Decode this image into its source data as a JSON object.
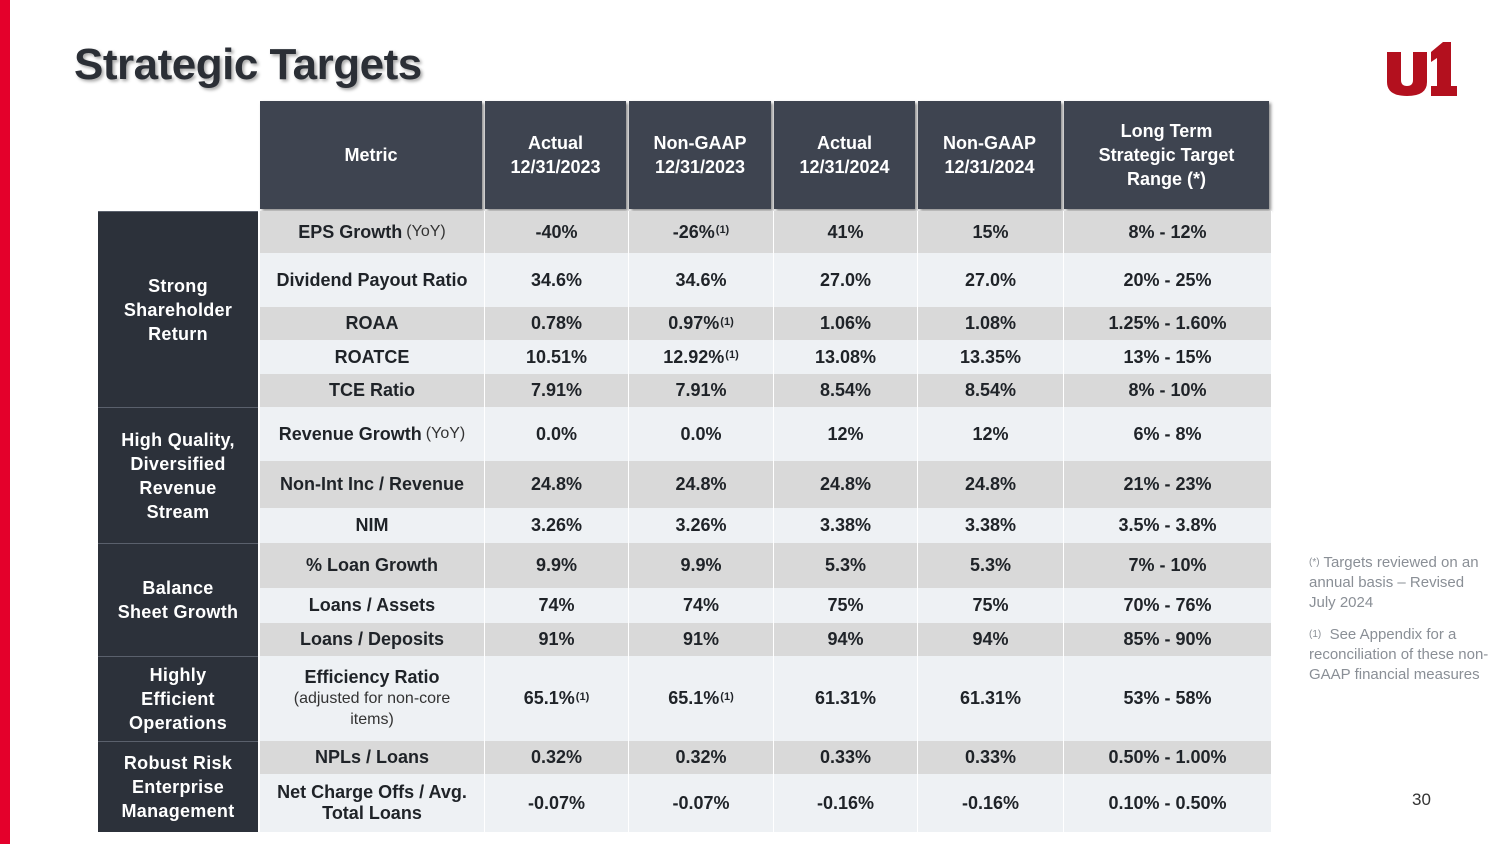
{
  "title": "Strategic Targets",
  "logo_alt": "u1",
  "colors": {
    "accent": "#e4002b",
    "header_bg": "#3e4450",
    "group_bg": "#2c313a",
    "row_dark": "#d9d9d9",
    "row_light": "#eef1f4"
  },
  "headers": [
    "Metric",
    "Actual\n12/31/2023",
    "Non-GAAP\n12/31/2023",
    "Actual\n12/31/2024",
    "Non-GAAP\n12/31/2024",
    "Long Term\nStrategic Target\nRange (*)"
  ],
  "groups": [
    "Strong\nShareholder\nReturn",
    "High Quality,\nDiversified\nRevenue\nStream",
    "Balance\nSheet Growth",
    "Highly\nEfficient\nOperations",
    "Robust Risk\nEnterprise\nManagement"
  ],
  "rows": [
    {
      "metric": "EPS Growth",
      "metric_sub": "(YoY)",
      "values": [
        "-40%",
        "-26%",
        "41%",
        "15%",
        "8% - 12%"
      ],
      "sup": [
        "",
        "(1)",
        "",
        "",
        ""
      ]
    },
    {
      "metric": "Dividend Payout Ratio",
      "values": [
        "34.6%",
        "34.6%",
        "27.0%",
        "27.0%",
        "20% - 25%"
      ],
      "sup": [
        "",
        "",
        "",
        "",
        ""
      ]
    },
    {
      "metric": "ROAA",
      "values": [
        "0.78%",
        "0.97%",
        "1.06%",
        "1.08%",
        "1.25% - 1.60%"
      ],
      "sup": [
        "",
        "(1)",
        "",
        "",
        ""
      ]
    },
    {
      "metric": "ROATCE",
      "values": [
        "10.51%",
        "12.92%",
        "13.08%",
        "13.35%",
        "13% - 15%"
      ],
      "sup": [
        "",
        "(1)",
        "",
        "",
        ""
      ]
    },
    {
      "metric": "TCE Ratio",
      "values": [
        "7.91%",
        "7.91%",
        "8.54%",
        "8.54%",
        "8% - 10%"
      ],
      "sup": [
        "",
        "",
        "",
        "",
        ""
      ]
    },
    {
      "metric": "Revenue Growth",
      "metric_sub": "(YoY)",
      "values": [
        "0.0%",
        "0.0%",
        "12%",
        "12%",
        "6% - 8%"
      ],
      "sup": [
        "",
        "",
        "",
        "",
        ""
      ]
    },
    {
      "metric": "Non-Int Inc / Revenue",
      "values": [
        "24.8%",
        "24.8%",
        "24.8%",
        "24.8%",
        "21% - 23%"
      ],
      "sup": [
        "",
        "",
        "",
        "",
        ""
      ]
    },
    {
      "metric": "NIM",
      "values": [
        "3.26%",
        "3.26%",
        "3.38%",
        "3.38%",
        "3.5% - 3.8%"
      ],
      "sup": [
        "",
        "",
        "",
        "",
        ""
      ]
    },
    {
      "metric": "% Loan Growth",
      "values": [
        "9.9%",
        "9.9%",
        "5.3%",
        "5.3%",
        "7% - 10%"
      ],
      "sup": [
        "",
        "",
        "",
        "",
        ""
      ]
    },
    {
      "metric": "Loans / Assets",
      "values": [
        "74%",
        "74%",
        "75%",
        "75%",
        "70% - 76%"
      ],
      "sup": [
        "",
        "",
        "",
        "",
        ""
      ]
    },
    {
      "metric": "Loans / Deposits",
      "values": [
        "91%",
        "91%",
        "94%",
        "94%",
        "85% - 90%"
      ],
      "sup": [
        "",
        "",
        "",
        "",
        ""
      ]
    },
    {
      "metric": "Efficiency Ratio",
      "metric_note": "(adjusted for non-core\nitems)",
      "values": [
        "65.1%",
        "65.1%",
        "61.31%",
        "61.31%",
        "53% - 58%"
      ],
      "sup": [
        "(1)",
        "(1)",
        "",
        "",
        ""
      ]
    },
    {
      "metric": "NPLs / Loans",
      "values": [
        "0.32%",
        "0.32%",
        "0.33%",
        "0.33%",
        "0.50% - 1.00%"
      ],
      "sup": [
        "",
        "",
        "",
        "",
        ""
      ]
    },
    {
      "metric": "Net Charge Offs / Avg.\nTotal Loans",
      "values": [
        "-0.07%",
        "-0.07%",
        "-0.16%",
        "-0.16%",
        "0.10% - 0.50%"
      ],
      "sup": [
        "",
        "",
        "",
        "",
        ""
      ]
    }
  ],
  "footnotes": {
    "star_mark": "(*)",
    "star": "Targets reviewed on an annual basis – Revised July 2024",
    "one_mark": "(1)",
    "one": "See Appendix for a reconciliation of these non-GAAP financial measures"
  },
  "page_number": "30"
}
